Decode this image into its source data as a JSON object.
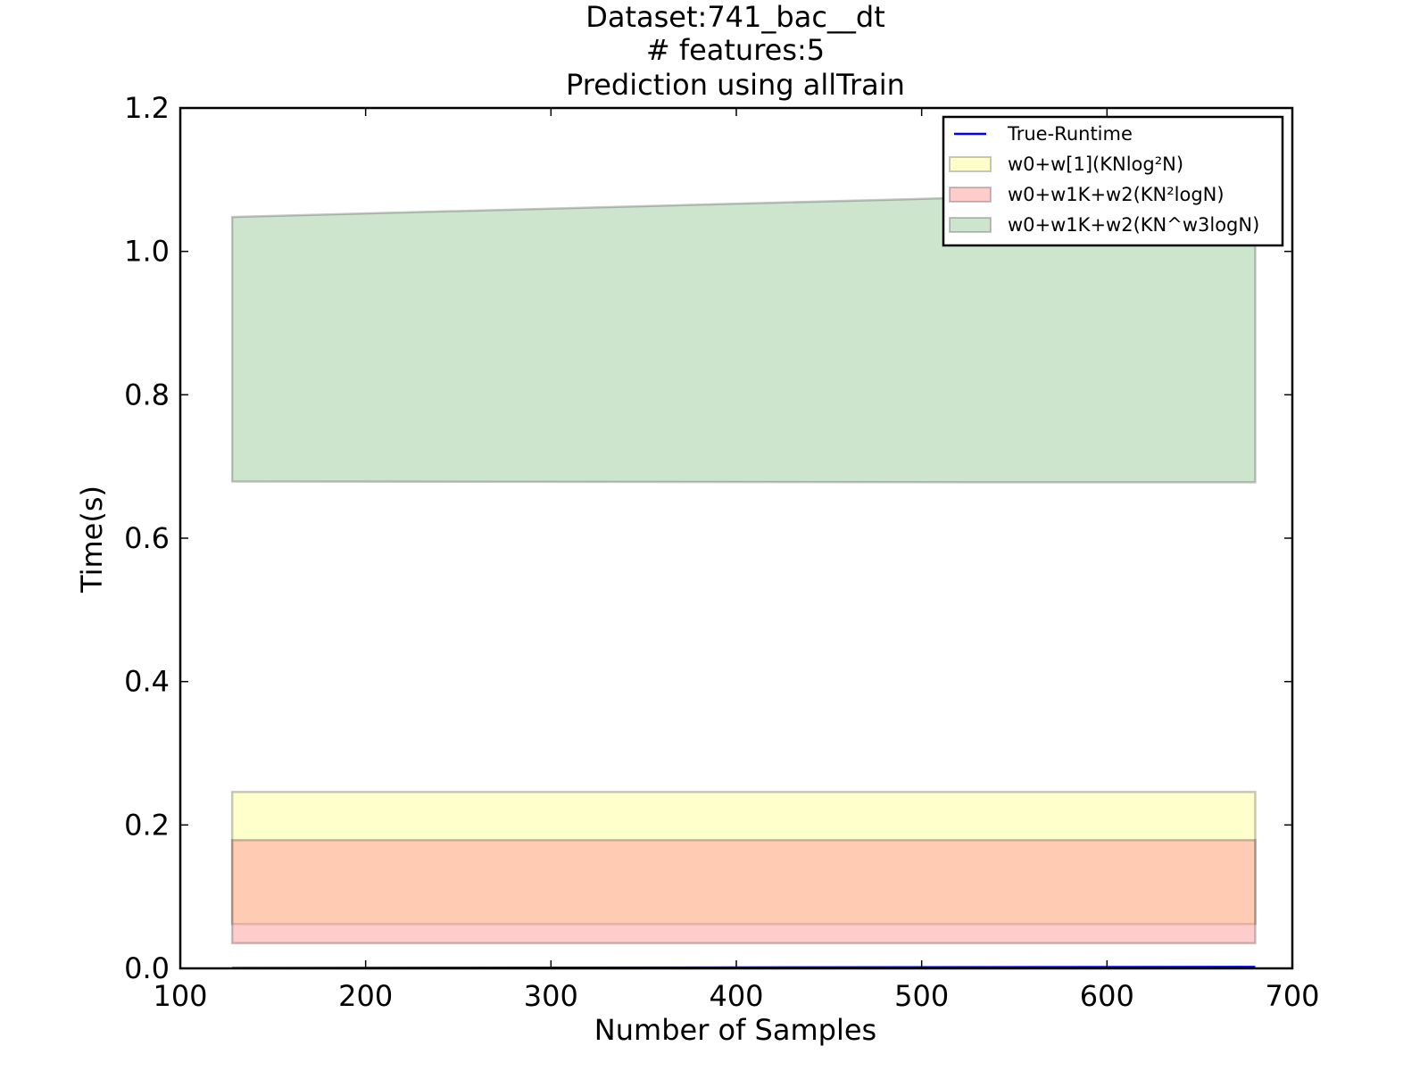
{
  "chart_data": {
    "type": "area",
    "title_lines": [
      "Dataset:741_bac__dt",
      "# features:5",
      "Prediction using allTrain"
    ],
    "xlabel": "Number of Samples",
    "ylabel": "Time(s)",
    "xlim": [
      100,
      700
    ],
    "ylim": [
      0.0,
      1.2
    ],
    "xticks": [
      100,
      200,
      300,
      400,
      500,
      600,
      700
    ],
    "xtick_labels": [
      "100",
      "200",
      "300",
      "400",
      "500",
      "600",
      "700"
    ],
    "yticks": [
      0.0,
      0.2,
      0.4,
      0.6,
      0.8,
      1.0,
      1.2
    ],
    "ytick_labels": [
      "0.0",
      "0.2",
      "0.4",
      "0.6",
      "0.8",
      "1.0",
      "1.2"
    ],
    "grid": false,
    "legend_position": "top-right",
    "series": [
      {
        "name": "True-Runtime",
        "kind": "line",
        "color": "#0000ff",
        "x": [
          128,
          680
        ],
        "y": [
          0.0005,
          0.002
        ]
      },
      {
        "name": "w0+w[1](KNlog²N)",
        "kind": "band",
        "color": "#ffff99",
        "x": [
          128,
          680
        ],
        "lower": [
          0.062,
          0.062
        ],
        "upper": [
          0.246,
          0.246
        ]
      },
      {
        "name": "w0+w1K+w2(KN²logN)",
        "kind": "band",
        "color": "#ff9999",
        "x": [
          128,
          680
        ],
        "lower": [
          0.035,
          0.035
        ],
        "upper": [
          0.179,
          0.179
        ]
      },
      {
        "name": "w0+w1K+w2(KN^w3logN)",
        "kind": "band",
        "color": "#99cc99",
        "x": [
          128,
          525,
          680
        ],
        "lower": [
          0.679,
          0.678,
          0.678
        ],
        "upper": [
          1.048,
          1.075,
          1.08
        ]
      }
    ]
  }
}
